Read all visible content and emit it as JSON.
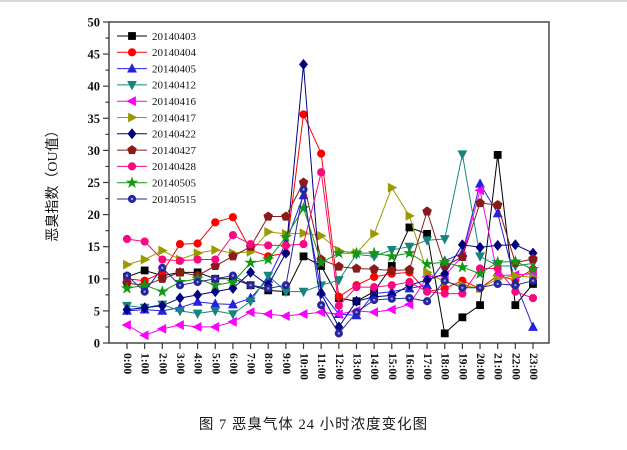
{
  "figure": {
    "caption": "图 7 恶臭气体 24 小时浓度变化图"
  },
  "chart_data": {
    "type": "line",
    "title": "",
    "xlabel": "",
    "ylabel": "恶臭指数（OU值）",
    "ylim": [
      0,
      50
    ],
    "ytick_step": 5,
    "yticks": [
      0,
      5,
      10,
      15,
      20,
      25,
      30,
      35,
      40,
      45,
      50
    ],
    "grid": false,
    "legend_position": "upper-left-inside",
    "x_label_rotation_deg": 90,
    "categories": [
      "0:00",
      "1:00",
      "2:00",
      "3:00",
      "4:00",
      "5:00",
      "6:00",
      "7:00",
      "8:00",
      "9:00",
      "10:00",
      "11:00",
      "12:00",
      "13:00",
      "14:00",
      "15:00",
      "16:00",
      "17:00",
      "18:00",
      "19:00",
      "20:00",
      "21:00",
      "22:00",
      "23:00"
    ],
    "series": [
      {
        "name": "20140403",
        "color": "#000000",
        "marker": "square",
        "values": [
          10.3,
          11.3,
          10.5,
          11,
          11,
          10,
          10,
          9,
          8.2,
          8,
          13.5,
          12,
          7,
          6.5,
          8,
          12,
          18,
          17,
          1.5,
          4,
          5.9,
          29.3,
          5.9,
          9.2
        ]
      },
      {
        "name": "20140404",
        "color": "#fe0000",
        "marker": "circle",
        "values": [
          10,
          9.7,
          11,
          15.4,
          15.5,
          18.8,
          19.6,
          14.5,
          13.5,
          14,
          35.6,
          29.5,
          7.2,
          9,
          10.3,
          10.8,
          11,
          8,
          8.5,
          9.7,
          8.5,
          10.5,
          9.8,
          11.5
        ]
      },
      {
        "name": "20140405",
        "color": "#2222e5",
        "marker": "triangle-up",
        "values": [
          5,
          5.2,
          5,
          5.5,
          6.4,
          6.1,
          6,
          7,
          10,
          15.6,
          23,
          8,
          4.5,
          4.3,
          7.7,
          8,
          8.5,
          9,
          12.8,
          14,
          24.8,
          20.2,
          9.5,
          2.5
        ]
      },
      {
        "name": "20140412",
        "color": "#17857d",
        "marker": "triangle-down",
        "values": [
          5.8,
          5.5,
          6,
          5,
          4.6,
          5,
          4.5,
          6.5,
          10.5,
          8,
          8,
          9,
          9.8,
          13.8,
          13.5,
          14.5,
          15,
          16,
          16.2,
          29.4,
          13.5,
          12,
          12,
          12.4
        ]
      },
      {
        "name": "20140416",
        "color": "#fb00fb",
        "marker": "triangle-left",
        "values": [
          2.8,
          1.2,
          2.2,
          2.8,
          2.5,
          2.5,
          3.3,
          4.8,
          4.5,
          4.2,
          4.5,
          4.8,
          4.5,
          5,
          4.8,
          5.2,
          6,
          10.3,
          10.5,
          13.5,
          23.8,
          10.5,
          10.6,
          10.8
        ]
      },
      {
        "name": "20140417",
        "color": "#9a9a00",
        "marker": "triangle-right",
        "values": [
          12.2,
          13,
          14.4,
          13,
          14,
          14.5,
          14,
          14.2,
          17.3,
          17,
          17.1,
          16.7,
          14.4,
          14,
          17,
          24.2,
          19.8,
          11,
          9.5,
          9,
          8.5,
          10,
          10.5,
          10.2
        ]
      },
      {
        "name": "20140422",
        "color": "#000080",
        "marker": "diamond",
        "values": [
          5.2,
          5.5,
          5.8,
          7,
          7.5,
          8,
          8.5,
          11,
          9,
          14,
          43.4,
          7.7,
          2.5,
          6.5,
          7.2,
          7.4,
          9,
          9.8,
          10.8,
          15.3,
          14.9,
          15.2,
          15.3,
          14
        ]
      },
      {
        "name": "20140427",
        "color": "#8b1a1a",
        "marker": "pentagon",
        "values": [
          9.3,
          9,
          10,
          11,
          10.5,
          12,
          13.5,
          15,
          19.7,
          19.7,
          25,
          13,
          11.9,
          11.6,
          11.5,
          11.3,
          11.4,
          20.5,
          12,
          13.4,
          21.8,
          21.5,
          12.5,
          13.1
        ]
      },
      {
        "name": "20140428",
        "color": "#fb0780",
        "marker": "circle",
        "values": [
          16.2,
          15.8,
          13,
          12.8,
          13,
          13,
          16.8,
          15.4,
          15.2,
          15.2,
          15.4,
          26.6,
          5.8,
          8.7,
          8.7,
          9,
          9.5,
          8,
          7.7,
          7.7,
          11.6,
          11.6,
          8,
          7
        ]
      },
      {
        "name": "20140505",
        "color": "#119a11",
        "marker": "star",
        "values": [
          8.5,
          9,
          8,
          9.5,
          10,
          9,
          9.5,
          12.5,
          13,
          16.5,
          21,
          12.5,
          14,
          14,
          14,
          13.5,
          14,
          12.3,
          12.6,
          11.8,
          10.8,
          12.6,
          12.7,
          11.5
        ]
      },
      {
        "name": "20140515",
        "color": "#26269c",
        "marker": "circle-dot",
        "values": [
          10.5,
          8,
          11.7,
          9,
          9.5,
          10,
          10.5,
          9,
          8.5,
          9,
          23.9,
          5.9,
          1.5,
          4.8,
          6.7,
          6.9,
          7,
          6.5,
          9.7,
          8.6,
          8.6,
          9.2,
          9,
          9.7
        ]
      }
    ]
  }
}
